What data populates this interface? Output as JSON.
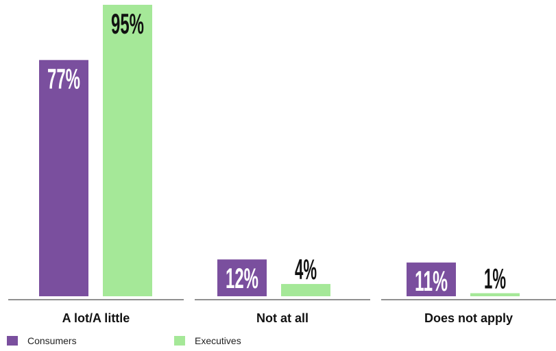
{
  "chart_data": {
    "type": "bar",
    "categories": [
      "A lot/A little",
      "Not at all",
      "Does not apply"
    ],
    "series": [
      {
        "name": "Consumers",
        "values": [
          77,
          12,
          11
        ],
        "labels": [
          "77%",
          "12%",
          "11%"
        ],
        "color": "#7a4f9e"
      },
      {
        "name": "Executives",
        "values": [
          95,
          4,
          1
        ],
        "labels": [
          "95%",
          "4%",
          "1%"
        ],
        "color": "#a5e898"
      }
    ],
    "ylim": [
      0,
      100
    ],
    "title": "",
    "xlabel": "",
    "ylabel": "",
    "legend_position": "bottom-left",
    "grid": false
  }
}
